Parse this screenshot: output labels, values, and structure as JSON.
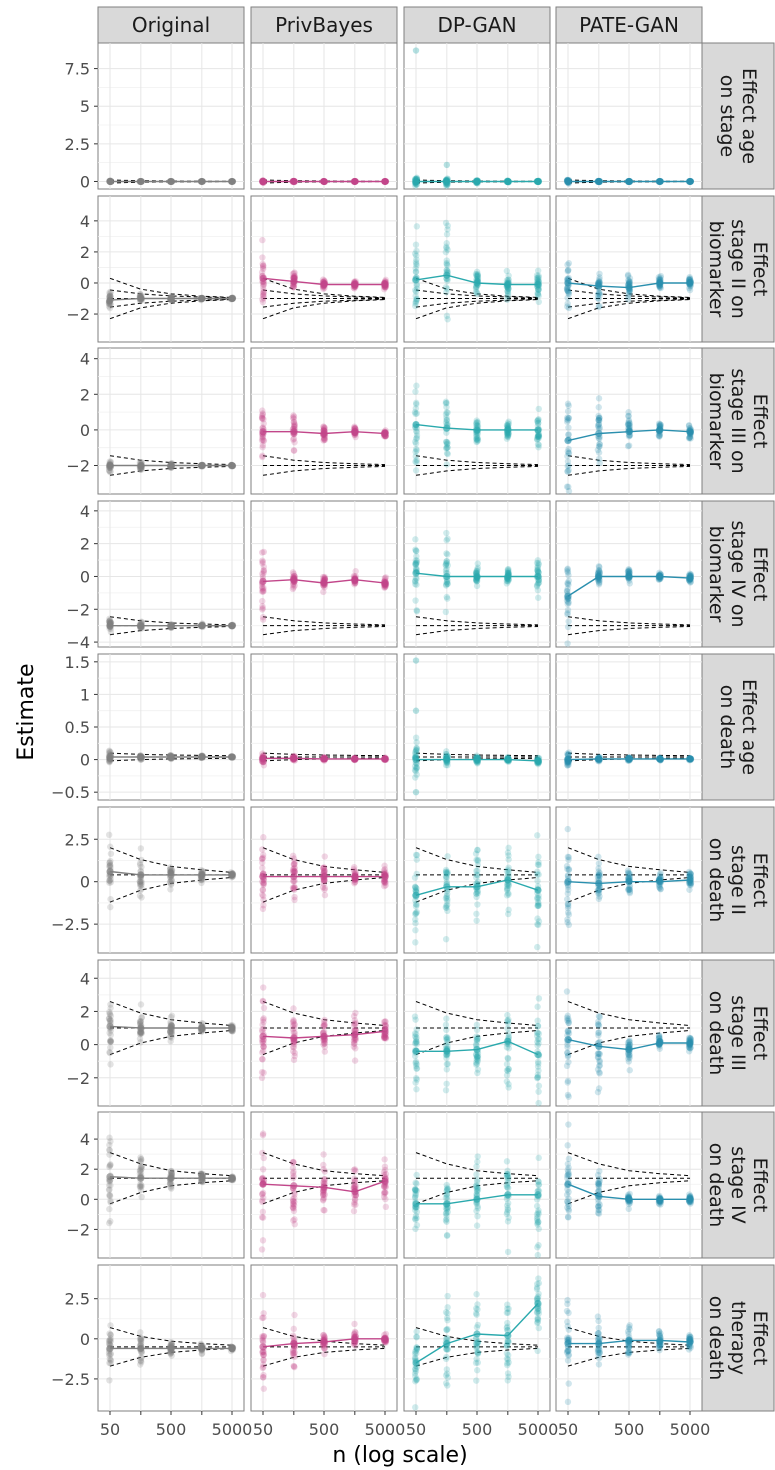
{
  "chart_data": {
    "type": "scatter",
    "xlabel": "n (log scale)",
    "ylabel": "Estimate",
    "x_scale": "log",
    "x_ticks": [
      50,
      500,
      5000
    ],
    "x_tick_labels": [
      "50",
      "500",
      "5000"
    ],
    "n_values": [
      50,
      160,
      500,
      1600,
      5000
    ],
    "columns": [
      "Original",
      "PrivBayes",
      "DP-GAN",
      "PATE-GAN"
    ],
    "column_colors": [
      "#808080",
      "#c2468a",
      "#2aa9ad",
      "#2a8fae"
    ],
    "grid": true,
    "rows": [
      {
        "label": [
          "Effect age",
          "on stage"
        ],
        "truth": 0,
        "ylim": [
          -0.5,
          9.2
        ],
        "y_ticks": [
          0,
          2.5,
          5,
          7.5
        ],
        "y_tick_labels": [
          "0",
          "2.5",
          "5",
          "7.5"
        ],
        "band": [
          [
            0.1,
            0.05,
            0.03,
            0.02,
            0.01
          ]
        ],
        "series": [
          {
            "mean": [
              0,
              0,
              0,
              0,
              0
            ],
            "spread": [
              0.05,
              0.03,
              0.02,
              0.01,
              0.01
            ]
          },
          {
            "mean": [
              0,
              0,
              0,
              0,
              0
            ],
            "spread": [
              0.1,
              0.05,
              0.03,
              0.02,
              0.01
            ]
          },
          {
            "mean": [
              0,
              0,
              0,
              0,
              0
            ],
            "spread": [
              0.3,
              0.25,
              0.1,
              0.05,
              0.05
            ],
            "outliers": [
              [
                50,
                8.7
              ],
              [
                160,
                1.1
              ]
            ]
          },
          {
            "mean": [
              0,
              0,
              0,
              0,
              0
            ],
            "spread": [
              0.15,
              0.05,
              0.03,
              0.02,
              0.02
            ]
          }
        ]
      },
      {
        "label": [
          "Effect",
          "stage II on",
          "biomarker"
        ],
        "truth": -1,
        "ylim": [
          -3.8,
          5.6
        ],
        "y_ticks": [
          -2,
          0,
          2,
          4
        ],
        "y_tick_labels": [
          "−2",
          "0",
          "2",
          "4"
        ],
        "band": [
          [
            0.55,
            0.3,
            0.17,
            0.1,
            0.05
          ],
          [
            1.3,
            0.6,
            0.3,
            0.15,
            0.07
          ]
        ],
        "series": [
          {
            "mean": [
              -1.1,
              -1.0,
              -1.0,
              -1.0,
              -1.0
            ],
            "spread": [
              0.5,
              0.3,
              0.15,
              0.08,
              0.05
            ]
          },
          {
            "mean": [
              0.3,
              0.1,
              -0.1,
              -0.1,
              -0.1
            ],
            "spread": [
              1.8,
              0.6,
              0.35,
              0.3,
              0.3
            ]
          },
          {
            "mean": [
              0.2,
              0.5,
              0,
              -0.1,
              -0.1
            ],
            "spread": [
              2.6,
              3.0,
              0.8,
              0.9,
              0.9
            ]
          },
          {
            "mean": [
              0,
              -0.2,
              -0.3,
              0,
              0
            ],
            "spread": [
              1.6,
              1.2,
              0.8,
              0.5,
              0.4
            ]
          }
        ]
      },
      {
        "label": [
          "Effect",
          "stage III on",
          "biomarker"
        ],
        "truth": -2,
        "ylim": [
          -3.6,
          4.6
        ],
        "y_ticks": [
          -2,
          0,
          2,
          4
        ],
        "y_tick_labels": [
          "−2",
          "0",
          "2",
          "4"
        ],
        "band": [
          [
            0.55,
            0.3,
            0.17,
            0.1,
            0.05
          ]
        ],
        "series": [
          {
            "mean": [
              -2.0,
              -2.0,
              -2.0,
              -2.0,
              -2.0
            ],
            "spread": [
              0.4,
              0.25,
              0.12,
              0.07,
              0.05
            ]
          },
          {
            "mean": [
              -0.1,
              -0.1,
              -0.2,
              -0.1,
              -0.2
            ],
            "spread": [
              1.7,
              1.2,
              0.6,
              0.3,
              0.2
            ]
          },
          {
            "mean": [
              0.3,
              0.1,
              0,
              0,
              0
            ],
            "spread": [
              3.5,
              2.8,
              0.7,
              0.8,
              1.3
            ]
          },
          {
            "mean": [
              -0.6,
              -0.2,
              -0.1,
              0,
              -0.1
            ],
            "spread": [
              2.8,
              2.0,
              1.0,
              0.4,
              0.4
            ]
          }
        ]
      },
      {
        "label": [
          "Effect",
          "stage IV on",
          "biomarker"
        ],
        "truth": -3,
        "ylim": [
          -4.3,
          4.6
        ],
        "y_ticks": [
          -4,
          -2,
          0,
          2,
          4
        ],
        "y_tick_labels": [
          "−4",
          "−2",
          "0",
          "2",
          "4"
        ],
        "band": [
          [
            0.55,
            0.3,
            0.17,
            0.1,
            0.05
          ]
        ],
        "series": [
          {
            "mean": [
              -3.0,
              -3.0,
              -3.0,
              -3.0,
              -3.0
            ],
            "spread": [
              0.4,
              0.25,
              0.12,
              0.07,
              0.05
            ]
          },
          {
            "mean": [
              -0.3,
              -0.2,
              -0.4,
              -0.2,
              -0.4
            ],
            "spread": [
              2.3,
              0.6,
              0.6,
              0.3,
              0.3
            ]
          },
          {
            "mean": [
              0.2,
              0,
              0,
              0,
              0
            ],
            "spread": [
              2.2,
              2.2,
              0.6,
              0.7,
              1.2
            ]
          },
          {
            "mean": [
              -1.2,
              0,
              0,
              0,
              -0.1
            ],
            "spread": [
              2.4,
              0.8,
              0.5,
              0.2,
              0.3
            ]
          }
        ]
      },
      {
        "label": [
          "Effect age",
          "on death"
        ],
        "truth": 0.04,
        "ylim": [
          -0.62,
          1.62
        ],
        "y_ticks": [
          -0.5,
          0,
          0.5,
          1,
          1.5
        ],
        "y_tick_labels": [
          "−0.5",
          "0",
          "0.5",
          "1",
          "1.5"
        ],
        "band": [
          [
            0.06,
            0.04,
            0.03,
            0.025,
            0.02
          ]
        ],
        "series": [
          {
            "mean": [
              0.04,
              0.04,
              0.04,
              0.04,
              0.04
            ],
            "spread": [
              0.1,
              0.04,
              0.03,
              0.02,
              0.01
            ]
          },
          {
            "mean": [
              0.02,
              0.02,
              0.01,
              0.01,
              0.01
            ],
            "spread": [
              0.08,
              0.05,
              0.03,
              0.02,
              0.02
            ]
          },
          {
            "mean": [
              0,
              0,
              0,
              0,
              -0.02
            ],
            "spread": [
              0.3,
              0.1,
              0.06,
              0.05,
              0.05
            ],
            "outliers": [
              [
                50,
                1.52
              ],
              [
                50,
                0.75
              ],
              [
                50,
                -0.5
              ]
            ]
          },
          {
            "mean": [
              0,
              0.01,
              0.01,
              0.01,
              0.01
            ],
            "spread": [
              0.12,
              0.04,
              0.03,
              0.02,
              0.02
            ]
          }
        ]
      },
      {
        "label": [
          "Effect",
          "stage II",
          "on death"
        ],
        "truth": 0.4,
        "ylim": [
          -4.2,
          4.4
        ],
        "y_ticks": [
          -2.5,
          0,
          2.5
        ],
        "y_tick_labels": [
          "−2.5",
          "0",
          "2.5"
        ],
        "band": [
          [
            1.6,
            0.9,
            0.5,
            0.3,
            0.15
          ]
        ],
        "series": [
          {
            "mean": [
              0.6,
              0.4,
              0.4,
              0.4,
              0.4
            ],
            "spread": [
              2.0,
              1.3,
              0.7,
              0.4,
              0.2
            ]
          },
          {
            "mean": [
              0.3,
              0.3,
              0.3,
              0.3,
              0.3
            ],
            "spread": [
              2.4,
              1.7,
              0.8,
              0.6,
              0.6
            ]
          },
          {
            "mean": [
              -0.8,
              -0.3,
              -0.3,
              0.1,
              -0.5
            ],
            "spread": [
              2.4,
              2.4,
              2.3,
              2.4,
              3.4
            ]
          },
          {
            "mean": [
              0,
              -0.1,
              0,
              0,
              0.1
            ],
            "spread": [
              2.8,
              1.2,
              0.6,
              0.5,
              0.5
            ]
          }
        ]
      },
      {
        "label": [
          "Effect",
          "stage III",
          "on death"
        ],
        "truth": 1.0,
        "ylim": [
          -3.7,
          5.1
        ],
        "y_ticks": [
          -2,
          0,
          2,
          4
        ],
        "y_tick_labels": [
          "−2",
          "0",
          "2",
          "4"
        ],
        "band": [
          [
            1.6,
            0.9,
            0.5,
            0.3,
            0.15
          ]
        ],
        "series": [
          {
            "mean": [
              1.1,
              1.0,
              1.0,
              1.0,
              1.0
            ],
            "spread": [
              2.5,
              1.4,
              0.7,
              0.3,
              0.2
            ]
          },
          {
            "mean": [
              0.5,
              0.4,
              0.5,
              0.6,
              0.8
            ],
            "spread": [
              3.0,
              2.2,
              1.3,
              1.2,
              0.8
            ]
          },
          {
            "mean": [
              -0.4,
              -0.4,
              -0.3,
              0.2,
              -0.6
            ],
            "spread": [
              2.4,
              2.0,
              2.3,
              2.6,
              2.8
            ]
          },
          {
            "mean": [
              0.3,
              -0.1,
              -0.3,
              0.1,
              0.1
            ],
            "spread": [
              3.5,
              2.0,
              0.8,
              0.5,
              0.5
            ]
          }
        ]
      },
      {
        "label": [
          "Effect",
          "stage IV",
          "on death"
        ],
        "truth": 1.4,
        "ylim": [
          -3.9,
          5.8
        ],
        "y_ticks": [
          -2,
          0,
          2,
          4
        ],
        "y_tick_labels": [
          "−2",
          "0",
          "2",
          "4"
        ],
        "band": [
          [
            1.7,
            0.95,
            0.5,
            0.3,
            0.17
          ]
        ],
        "series": [
          {
            "mean": [
              1.5,
              1.4,
              1.4,
              1.4,
              1.4
            ],
            "spread": [
              3.0,
              1.5,
              0.8,
              0.4,
              0.25
            ]
          },
          {
            "mean": [
              1.0,
              0.9,
              0.8,
              0.5,
              1.2
            ],
            "spread": [
              4.0,
              2.8,
              2.0,
              1.8,
              1.5
            ]
          },
          {
            "mean": [
              -0.3,
              -0.3,
              0,
              0.3,
              0.3
            ],
            "spread": [
              2.2,
              2.6,
              2.4,
              2.5,
              3.2
            ]
          },
          {
            "mean": [
              1.0,
              0.2,
              0,
              0,
              0
            ],
            "spread": [
              3.0,
              1.8,
              0.4,
              0.3,
              0.3
            ]
          }
        ]
      },
      {
        "label": [
          "Effect",
          "therapy",
          "on death"
        ],
        "truth": -0.5,
        "ylim": [
          -4.5,
          4.6
        ],
        "y_ticks": [
          -2.5,
          0,
          2.5
        ],
        "y_tick_labels": [
          "−2.5",
          "0",
          "2.5"
        ],
        "band": [
          [
            1.2,
            0.65,
            0.35,
            0.2,
            0.1
          ]
        ],
        "series": [
          {
            "mean": [
              -0.6,
              -0.6,
              -0.6,
              -0.6,
              -0.6
            ],
            "spread": [
              1.8,
              0.9,
              0.4,
              0.3,
              0.2
            ]
          },
          {
            "mean": [
              -0.5,
              -0.3,
              -0.2,
              0,
              0
            ],
            "spread": [
              2.8,
              1.5,
              0.8,
              0.6,
              0.3
            ]
          },
          {
            "mean": [
              -1.5,
              -0.3,
              0.3,
              0.2,
              2.2
            ],
            "spread": [
              2.5,
              3.0,
              2.8,
              2.8,
              1.8
            ]
          },
          {
            "mean": [
              -0.3,
              -0.3,
              -0.1,
              -0.1,
              -0.2
            ],
            "spread": [
              3.0,
              2.0,
              1.0,
              0.7,
              0.5
            ]
          }
        ]
      }
    ]
  }
}
